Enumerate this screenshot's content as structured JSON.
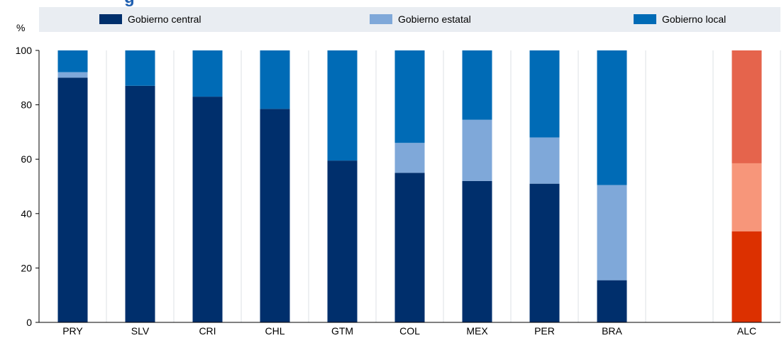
{
  "chart_data": {
    "type": "bar",
    "stacked": true,
    "title_fragment": "g",
    "unit_label": "%",
    "ylim": [
      0,
      100
    ],
    "yticks": [
      0,
      20,
      40,
      60,
      80,
      100
    ],
    "categories": [
      "PRY",
      "SLV",
      "CRI",
      "CHL",
      "GTM",
      "COL",
      "MEX",
      "PER",
      "BRA",
      "",
      "ALC"
    ],
    "series": [
      {
        "name": "Gobierno central",
        "color": "#002f6c",
        "values": [
          90,
          87,
          83,
          78.5,
          59.5,
          55,
          52,
          51,
          15.5,
          null,
          null
        ]
      },
      {
        "name": "Gobierno estatal",
        "color": "#7fa8d9",
        "values": [
          2,
          0,
          0,
          0,
          0,
          11,
          22.5,
          17,
          35,
          null,
          null
        ]
      },
      {
        "name": "Gobierno local",
        "color": "#006bb6",
        "values": [
          8,
          13,
          17,
          21.5,
          40.5,
          34,
          25.5,
          32,
          49.5,
          null,
          null
        ]
      }
    ],
    "highlight": {
      "category": "ALC",
      "values": [
        33.5,
        25,
        41.5
      ],
      "colors": [
        "#dc3000",
        "#f7967a",
        "#e5644c"
      ]
    },
    "legend_position": "top",
    "grid": "vertical"
  }
}
